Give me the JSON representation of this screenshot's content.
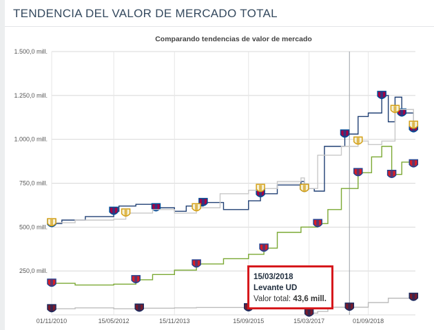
{
  "header": {
    "title": "TENDENCIA DEL VALOR DE MERCADO TOTAL"
  },
  "chart_data": {
    "type": "line",
    "title": "Comparando tendencias de valor de mercado",
    "x_tick_labels": [
      "01/11/2010",
      "15/05/2012",
      "15/11/2013",
      "15/09/2015",
      "15/03/2017",
      "01/09/2018"
    ],
    "y_tick_labels": [
      "1.500,0 mill.",
      "1.250,0 mill.",
      "1.000,0 mill.",
      "750,0 mill.",
      "500,0 mill.",
      "250,0 mill."
    ],
    "ylim": [
      0,
      1500
    ],
    "xlim": [
      "2010-11-01",
      "2019-11-01"
    ],
    "grid": true,
    "series": [
      {
        "color": "#1f3f73",
        "badge": "barcelona-crest",
        "points": [
          [
            "2010-11-01",
            520
          ],
          [
            "2011-02-01",
            540
          ],
          [
            "2011-09-01",
            560
          ],
          [
            "2012-05-15",
            590
          ],
          [
            "2012-07-01",
            620
          ],
          [
            "2012-12-01",
            630
          ],
          [
            "2013-06-01",
            610
          ],
          [
            "2013-11-15",
            590
          ],
          [
            "2014-03-01",
            620
          ],
          [
            "2014-08-01",
            640
          ],
          [
            "2015-02-01",
            600
          ],
          [
            "2015-09-15",
            650
          ],
          [
            "2016-01-01",
            690
          ],
          [
            "2016-06-01",
            740
          ],
          [
            "2017-01-01",
            760
          ],
          [
            "2017-02-01",
            720
          ],
          [
            "2017-05-01",
            705
          ],
          [
            "2017-08-01",
            960
          ],
          [
            "2018-02-01",
            1030
          ],
          [
            "2018-06-01",
            1130
          ],
          [
            "2018-09-01",
            1150
          ],
          [
            "2019-01-01",
            1250
          ],
          [
            "2019-03-01",
            1100
          ],
          [
            "2019-05-01",
            1240
          ],
          [
            "2019-07-01",
            1150
          ],
          [
            "2019-10-15",
            1060
          ]
        ]
      },
      {
        "color": "#c8c8c8",
        "badge": "real-madrid-crest",
        "points": [
          [
            "2010-11-01",
            525
          ],
          [
            "2011-06-01",
            540
          ],
          [
            "2012-05-15",
            545
          ],
          [
            "2012-09-01",
            580
          ],
          [
            "2013-05-01",
            600
          ],
          [
            "2013-11-15",
            580
          ],
          [
            "2014-06-01",
            610
          ],
          [
            "2015-01-01",
            690
          ],
          [
            "2015-09-15",
            710
          ],
          [
            "2016-01-01",
            720
          ],
          [
            "2016-06-01",
            760
          ],
          [
            "2017-01-01",
            780
          ],
          [
            "2017-02-01",
            720
          ],
          [
            "2017-06-01",
            910
          ],
          [
            "2018-01-01",
            960
          ],
          [
            "2018-06-01",
            990
          ],
          [
            "2018-09-01",
            970
          ],
          [
            "2019-01-01",
            990
          ],
          [
            "2019-05-01",
            1170
          ],
          [
            "2019-10-15",
            1080
          ]
        ]
      },
      {
        "color": "#7aa832",
        "badge": "atletico-madrid-crest",
        "points": [
          [
            "2010-11-01",
            180
          ],
          [
            "2011-06-01",
            170
          ],
          [
            "2012-05-15",
            175
          ],
          [
            "2012-12-01",
            200
          ],
          [
            "2013-05-01",
            230
          ],
          [
            "2013-11-15",
            255
          ],
          [
            "2014-06-01",
            290
          ],
          [
            "2015-02-01",
            320
          ],
          [
            "2015-09-15",
            345
          ],
          [
            "2016-02-01",
            380
          ],
          [
            "2016-06-01",
            470
          ],
          [
            "2017-01-01",
            500
          ],
          [
            "2017-06-01",
            520
          ],
          [
            "2017-09-01",
            600
          ],
          [
            "2018-01-01",
            720
          ],
          [
            "2018-06-01",
            810
          ],
          [
            "2018-10-01",
            900
          ],
          [
            "2019-01-01",
            960
          ],
          [
            "2019-04-01",
            800
          ],
          [
            "2019-07-01",
            870
          ],
          [
            "2019-10-15",
            860
          ]
        ]
      },
      {
        "color": "#bdbdbd",
        "badge": "levante-crest",
        "points": [
          [
            "2010-11-01",
            35
          ],
          [
            "2011-06-01",
            40
          ],
          [
            "2012-05-15",
            35
          ],
          [
            "2013-01-01",
            38
          ],
          [
            "2013-11-15",
            40
          ],
          [
            "2014-06-01",
            42
          ],
          [
            "2015-09-15",
            40
          ],
          [
            "2016-06-01",
            43
          ],
          [
            "2017-01-01",
            42
          ],
          [
            "2017-03-15",
            10
          ],
          [
            "2017-06-01",
            20
          ],
          [
            "2017-09-01",
            43.6
          ],
          [
            "2018-03-15",
            43.6
          ],
          [
            "2018-09-01",
            70
          ],
          [
            "2019-03-01",
            95
          ],
          [
            "2019-10-15",
            100
          ]
        ]
      }
    ],
    "tooltip": {
      "date": "15/03/2018",
      "club": "Levante UD",
      "label": "Valor total:",
      "value": "43,6 mill."
    }
  }
}
